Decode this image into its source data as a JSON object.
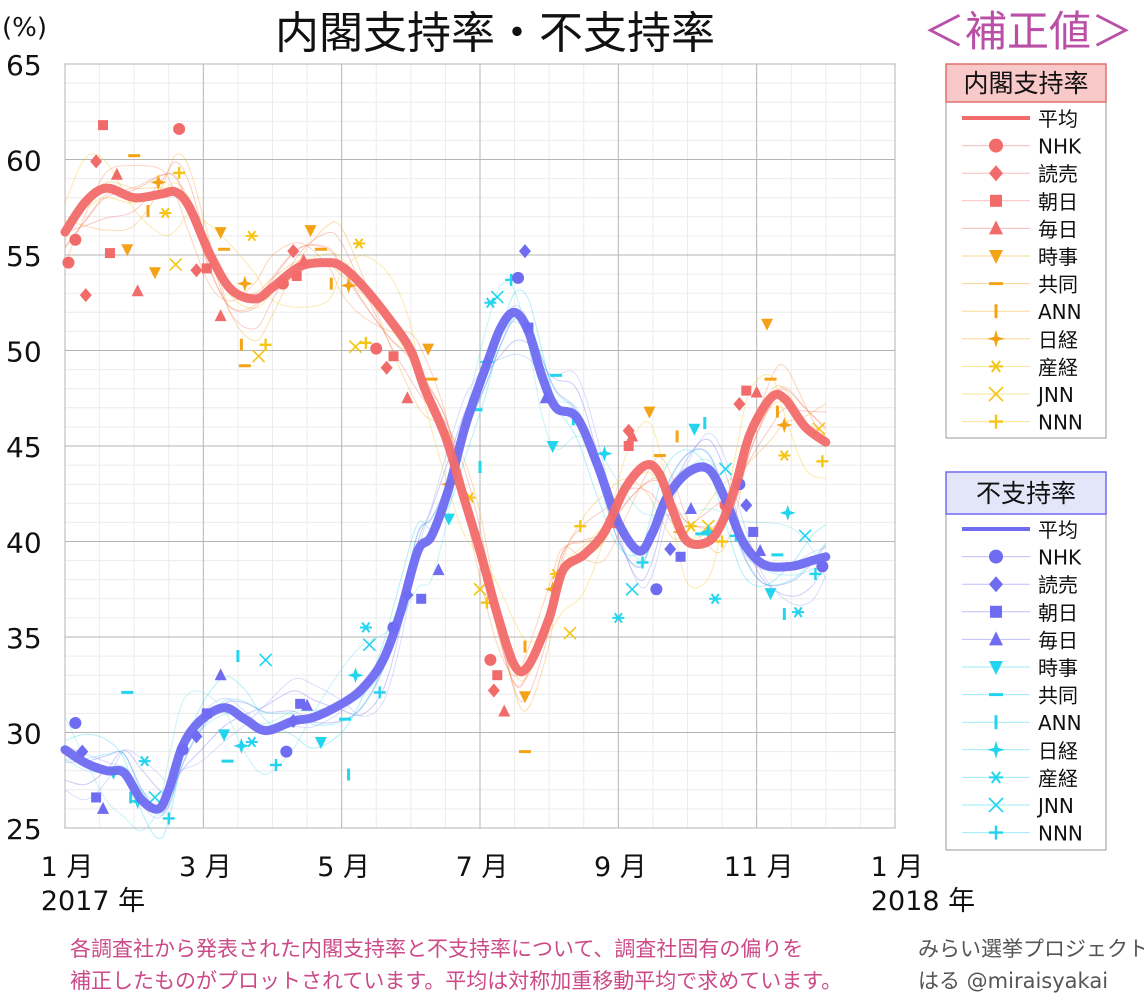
{
  "title": "内閣支持率・不支持率",
  "corrected_tag": "＜補正値＞",
  "y_unit": "(%)",
  "footnote": {
    "line1": "各調査社から発表された内閣支持率と不支持率について、調査社固有の偏りを",
    "line2": "補正したものがプロットされています。平均は対称加重移動平均で求めています。"
  },
  "credit": {
    "line1": "みらい選挙プロジェクト",
    "line2": "はる @miraisyakai"
  },
  "colors": {
    "approval": "#f26b6b",
    "approval_mid": "#f78a48",
    "approval_orange": "#f5a316",
    "disapproval": "#6f6cf2",
    "disapproval_cyan": "#22d4ee",
    "approval_legend_bg": "#f9c9c9",
    "approval_legend_border": "#e0706e",
    "disapproval_legend_bg": "#e3e6f8",
    "disapproval_legend_border": "#6f6cf2",
    "pink_text": "#cc4a88",
    "tag_text": "#b94fa6"
  },
  "legend_approval": {
    "header": "内閣支持率",
    "items": [
      {
        "label": "平均",
        "marker": "line",
        "color": "#f26b6b"
      },
      {
        "label": "NHK",
        "marker": "circle",
        "color": "#f26b6b"
      },
      {
        "label": "読売",
        "marker": "diamond",
        "color": "#f26b6b"
      },
      {
        "label": "朝日",
        "marker": "square",
        "color": "#f26b6b"
      },
      {
        "label": "毎日",
        "marker": "triangle-up",
        "color": "#f26b6b"
      },
      {
        "label": "時事",
        "marker": "triangle-down",
        "color": "#f5a316"
      },
      {
        "label": "共同",
        "marker": "dash",
        "color": "#f5a316"
      },
      {
        "label": "ANN",
        "marker": "vbar",
        "color": "#f5a316"
      },
      {
        "label": "日経",
        "marker": "star4",
        "color": "#f5a316"
      },
      {
        "label": "産経",
        "marker": "asterisk",
        "color": "#f5c516"
      },
      {
        "label": "JNN",
        "marker": "x",
        "color": "#f5c516"
      },
      {
        "label": "NNN",
        "marker": "plus",
        "color": "#f5c516"
      }
    ]
  },
  "legend_disapproval": {
    "header": "不支持率",
    "items": [
      {
        "label": "平均",
        "marker": "line",
        "color": "#6f6cf2"
      },
      {
        "label": "NHK",
        "marker": "circle",
        "color": "#6f6cf2"
      },
      {
        "label": "読売",
        "marker": "diamond",
        "color": "#6f6cf2"
      },
      {
        "label": "朝日",
        "marker": "square",
        "color": "#6f6cf2"
      },
      {
        "label": "毎日",
        "marker": "triangle-up",
        "color": "#6f6cf2"
      },
      {
        "label": "時事",
        "marker": "triangle-down",
        "color": "#22d4ee"
      },
      {
        "label": "共同",
        "marker": "dash",
        "color": "#22d4ee"
      },
      {
        "label": "ANN",
        "marker": "vbar",
        "color": "#22d4ee"
      },
      {
        "label": "日経",
        "marker": "star4",
        "color": "#22d4ee"
      },
      {
        "label": "産経",
        "marker": "asterisk",
        "color": "#22d4ee"
      },
      {
        "label": "JNN",
        "marker": "x",
        "color": "#22d4ee"
      },
      {
        "label": "NNN",
        "marker": "plus",
        "color": "#22d4ee"
      }
    ]
  },
  "chart_data": {
    "type": "line",
    "ylim": [
      25,
      65
    ],
    "yticks": [
      "25",
      "30",
      "35",
      "40",
      "45",
      "50",
      "55",
      "60",
      "65"
    ],
    "xlim": [
      0,
      12
    ],
    "xticks": [
      {
        "m": 0,
        "label": "1 月"
      },
      {
        "m": 2,
        "label": "3 月"
      },
      {
        "m": 4,
        "label": "5 月"
      },
      {
        "m": 6,
        "label": "7 月"
      },
      {
        "m": 8,
        "label": "9 月"
      },
      {
        "m": 10,
        "label": "11 月"
      },
      {
        "m": 12,
        "label": "1 月"
      }
    ],
    "x_year_labels": [
      {
        "m": 0,
        "label": "2017 年"
      },
      {
        "m": 12,
        "label": "2018 年"
      }
    ],
    "grid": true,
    "legend_position": "right",
    "series": [
      {
        "name": "内閣支持率 平均",
        "points": [
          [
            0,
            56.2
          ],
          [
            0.3,
            57.8
          ],
          [
            0.6,
            58.5
          ],
          [
            1.0,
            58.0
          ],
          [
            1.4,
            58.2
          ],
          [
            1.6,
            58.3
          ],
          [
            1.8,
            57.5
          ],
          [
            2.1,
            55.0
          ],
          [
            2.4,
            53.2
          ],
          [
            2.75,
            52.7
          ],
          [
            3.0,
            53.3
          ],
          [
            3.4,
            54.4
          ],
          [
            3.8,
            54.6
          ],
          [
            4.0,
            54.4
          ],
          [
            4.3,
            53.4
          ],
          [
            4.7,
            51.6
          ],
          [
            5.0,
            50.0
          ],
          [
            5.2,
            48.0
          ],
          [
            5.5,
            45.5
          ],
          [
            5.75,
            42.5
          ],
          [
            6.0,
            39.5
          ],
          [
            6.25,
            36.2
          ],
          [
            6.5,
            33.5
          ],
          [
            6.7,
            33.5
          ],
          [
            7.0,
            36.0
          ],
          [
            7.2,
            38.5
          ],
          [
            7.5,
            39.3
          ],
          [
            7.8,
            40.5
          ],
          [
            8.1,
            42.8
          ],
          [
            8.4,
            44.0
          ],
          [
            8.6,
            43.5
          ],
          [
            8.8,
            41.5
          ],
          [
            9.0,
            40.0
          ],
          [
            9.3,
            40.0
          ],
          [
            9.5,
            41.0
          ],
          [
            9.7,
            43.0
          ],
          [
            9.9,
            45.6
          ],
          [
            10.2,
            47.5
          ],
          [
            10.4,
            47.5
          ],
          [
            10.7,
            46.0
          ],
          [
            11.0,
            45.2
          ]
        ]
      },
      {
        "name": "不支持率 平均",
        "points": [
          [
            0,
            29.1
          ],
          [
            0.3,
            28.4
          ],
          [
            0.6,
            28.0
          ],
          [
            0.85,
            27.9
          ],
          [
            1.1,
            26.5
          ],
          [
            1.35,
            26.0
          ],
          [
            1.5,
            27.0
          ],
          [
            1.7,
            29.3
          ],
          [
            1.95,
            30.6
          ],
          [
            2.3,
            31.3
          ],
          [
            2.6,
            30.7
          ],
          [
            2.9,
            30.1
          ],
          [
            3.3,
            30.6
          ],
          [
            3.6,
            30.8
          ],
          [
            4.0,
            31.5
          ],
          [
            4.3,
            32.3
          ],
          [
            4.6,
            33.8
          ],
          [
            4.85,
            36.3
          ],
          [
            5.1,
            39.5
          ],
          [
            5.3,
            40.3
          ],
          [
            5.55,
            42.8
          ],
          [
            5.8,
            46.2
          ],
          [
            6.1,
            49.3
          ],
          [
            6.3,
            51.2
          ],
          [
            6.5,
            52.0
          ],
          [
            6.7,
            51.0
          ],
          [
            6.9,
            48.6
          ],
          [
            7.1,
            47.0
          ],
          [
            7.4,
            46.5
          ],
          [
            7.7,
            44.0
          ],
          [
            8.0,
            41.0
          ],
          [
            8.3,
            39.5
          ],
          [
            8.5,
            40.5
          ],
          [
            8.7,
            42.3
          ],
          [
            9.0,
            43.6
          ],
          [
            9.3,
            43.8
          ],
          [
            9.55,
            42.2
          ],
          [
            9.8,
            40.0
          ],
          [
            10.1,
            38.8
          ],
          [
            10.5,
            38.7
          ],
          [
            10.8,
            39.0
          ],
          [
            11.0,
            39.2
          ]
        ]
      }
    ],
    "scatter_approval": [
      [
        0.15,
        55.8
      ],
      [
        0.45,
        59.9
      ],
      [
        0.65,
        55.1
      ],
      [
        0.75,
        59.2
      ],
      [
        0.9,
        55.3
      ],
      [
        1.0,
        60.2
      ],
      [
        1.2,
        57.3
      ],
      [
        1.35,
        58.8
      ],
      [
        1.45,
        57.2
      ],
      [
        1.6,
        54.5
      ],
      [
        1.65,
        59.3
      ],
      [
        1.65,
        61.6
      ],
      [
        1.9,
        54.2
      ],
      [
        2.05,
        54.3
      ],
      [
        2.25,
        51.8
      ],
      [
        2.25,
        56.2
      ],
      [
        2.3,
        55.3
      ],
      [
        2.55,
        50.3
      ],
      [
        2.6,
        53.5
      ],
      [
        2.7,
        56.0
      ],
      [
        2.8,
        49.7
      ],
      [
        2.9,
        50.3
      ],
      [
        3.15,
        53.5
      ],
      [
        3.3,
        55.2
      ],
      [
        3.35,
        53.9
      ],
      [
        3.45,
        54.7
      ],
      [
        3.55,
        56.3
      ],
      [
        3.7,
        55.3
      ],
      [
        3.85,
        53.5
      ],
      [
        4.1,
        53.4
      ],
      [
        4.25,
        55.6
      ],
      [
        4.2,
        50.2
      ],
      [
        4.35,
        50.4
      ],
      [
        4.5,
        50.1
      ],
      [
        4.65,
        49.1
      ],
      [
        4.75,
        49.7
      ],
      [
        4.95,
        47.5
      ],
      [
        5.25,
        50.1
      ],
      [
        5.3,
        48.5
      ],
      [
        5.5,
        45.5
      ],
      [
        5.55,
        43.0
      ],
      [
        5.85,
        42.3
      ],
      [
        6.0,
        37.5
      ],
      [
        6.1,
        36.8
      ],
      [
        6.15,
        33.8
      ],
      [
        6.2,
        32.2
      ],
      [
        6.25,
        33.0
      ],
      [
        6.35,
        31.1
      ],
      [
        6.65,
        31.9
      ],
      [
        6.65,
        29.0
      ],
      [
        6.65,
        34.5
      ],
      [
        7.05,
        37.5
      ],
      [
        7.1,
        38.3
      ],
      [
        7.3,
        35.2
      ],
      [
        7.45,
        40.8
      ],
      [
        7.95,
        41.0
      ],
      [
        8.15,
        45.8
      ],
      [
        8.15,
        45.0
      ],
      [
        8.2,
        45.5
      ],
      [
        8.45,
        46.8
      ],
      [
        8.6,
        44.5
      ],
      [
        8.85,
        45.5
      ],
      [
        8.9,
        40.5
      ],
      [
        9.05,
        40.8
      ],
      [
        9.3,
        40.8
      ],
      [
        9.5,
        40.0
      ],
      [
        9.55,
        41.9
      ],
      [
        9.75,
        47.2
      ],
      [
        9.85,
        47.9
      ],
      [
        10.0,
        47.8
      ],
      [
        10.15,
        51.4
      ],
      [
        10.2,
        48.5
      ],
      [
        10.3,
        46.8
      ],
      [
        10.4,
        46.1
      ],
      [
        10.4,
        44.5
      ],
      [
        10.9,
        45.9
      ],
      [
        10.95,
        44.2
      ],
      [
        0.05,
        54.6
      ],
      [
        0.3,
        52.9
      ],
      [
        0.55,
        61.8
      ],
      [
        1.05,
        53.1
      ],
      [
        1.3,
        54.1
      ],
      [
        2.6,
        49.2
      ]
    ],
    "scatter_disapproval": [
      [
        0.15,
        30.5
      ],
      [
        0.25,
        29.0
      ],
      [
        0.45,
        26.6
      ],
      [
        0.55,
        26.0
      ],
      [
        0.7,
        27.9
      ],
      [
        0.9,
        32.1
      ],
      [
        0.95,
        26.6
      ],
      [
        1.05,
        26.4
      ],
      [
        1.15,
        28.5
      ],
      [
        1.3,
        26.6
      ],
      [
        1.5,
        25.5
      ],
      [
        1.7,
        29.1
      ],
      [
        1.9,
        29.8
      ],
      [
        2.05,
        31.0
      ],
      [
        2.25,
        33.0
      ],
      [
        2.3,
        29.9
      ],
      [
        2.35,
        28.5
      ],
      [
        2.5,
        34.0
      ],
      [
        2.55,
        29.3
      ],
      [
        2.7,
        29.5
      ],
      [
        2.9,
        33.8
      ],
      [
        3.05,
        28.3
      ],
      [
        3.2,
        29.0
      ],
      [
        3.3,
        30.6
      ],
      [
        3.4,
        31.5
      ],
      [
        3.5,
        31.4
      ],
      [
        3.7,
        29.5
      ],
      [
        4.05,
        30.7
      ],
      [
        4.1,
        27.8
      ],
      [
        4.2,
        33.0
      ],
      [
        4.35,
        35.5
      ],
      [
        4.4,
        34.6
      ],
      [
        4.55,
        32.1
      ],
      [
        4.75,
        35.5
      ],
      [
        4.95,
        37.2
      ],
      [
        5.15,
        37.0
      ],
      [
        5.4,
        38.5
      ],
      [
        5.55,
        41.2
      ],
      [
        5.95,
        46.9
      ],
      [
        6.0,
        43.9
      ],
      [
        6.1,
        49.4
      ],
      [
        6.15,
        52.5
      ],
      [
        6.25,
        52.8
      ],
      [
        6.45,
        53.7
      ],
      [
        6.55,
        53.8
      ],
      [
        6.65,
        55.2
      ],
      [
        6.7,
        51.2
      ],
      [
        6.95,
        47.5
      ],
      [
        7.05,
        45.0
      ],
      [
        7.1,
        48.7
      ],
      [
        7.35,
        46.4
      ],
      [
        7.8,
        44.6
      ],
      [
        8.0,
        36.0
      ],
      [
        8.2,
        37.5
      ],
      [
        8.35,
        38.9
      ],
      [
        8.55,
        37.5
      ],
      [
        8.75,
        39.6
      ],
      [
        8.9,
        39.2
      ],
      [
        9.05,
        41.7
      ],
      [
        9.1,
        45.9
      ],
      [
        9.2,
        40.4
      ],
      [
        9.25,
        46.2
      ],
      [
        9.3,
        40.5
      ],
      [
        9.4,
        37.0
      ],
      [
        9.55,
        43.8
      ],
      [
        9.7,
        40.3
      ],
      [
        9.75,
        43.0
      ],
      [
        9.85,
        41.9
      ],
      [
        9.95,
        40.5
      ],
      [
        10.05,
        39.5
      ],
      [
        10.2,
        37.3
      ],
      [
        10.3,
        39.3
      ],
      [
        10.4,
        36.2
      ],
      [
        10.45,
        41.5
      ],
      [
        10.6,
        36.3
      ],
      [
        10.7,
        40.3
      ],
      [
        10.85,
        38.3
      ],
      [
        10.95,
        38.7
      ]
    ]
  }
}
